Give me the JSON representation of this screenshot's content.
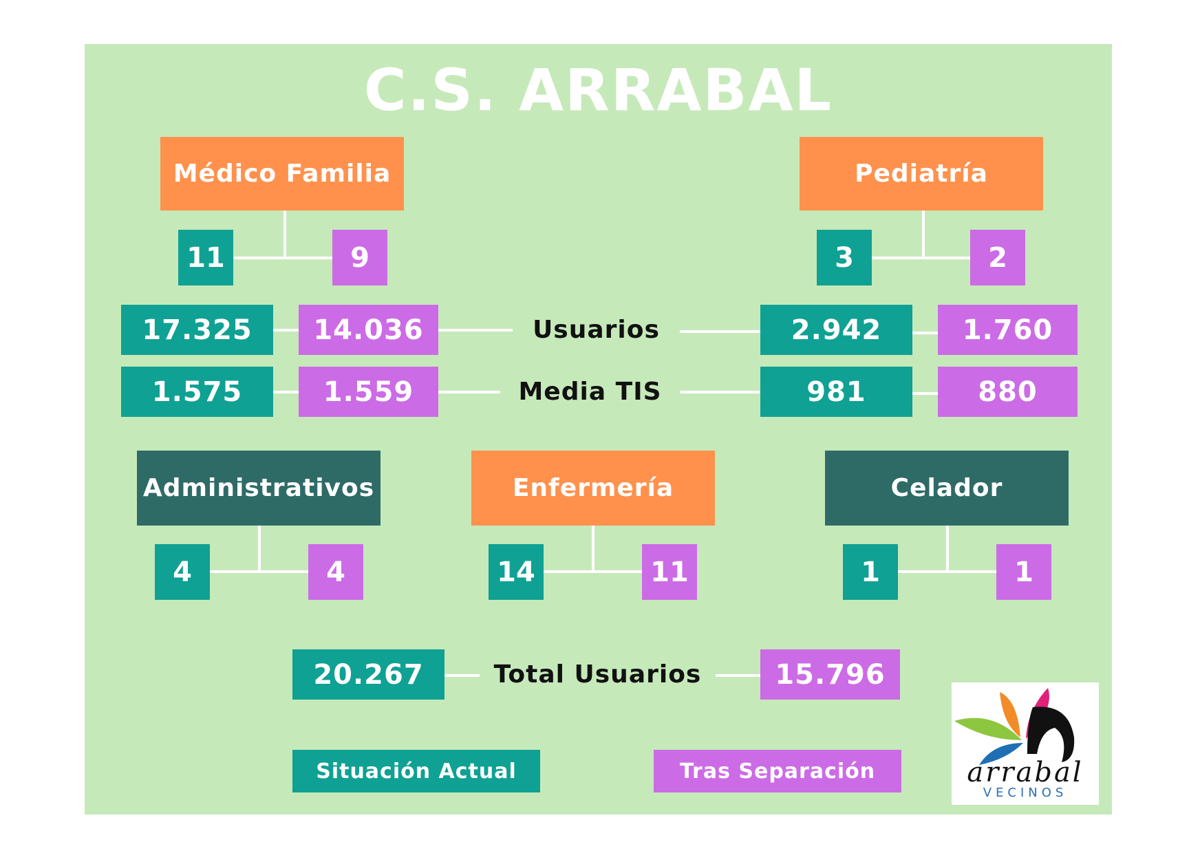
{
  "title": "C.S. ARRABAL",
  "medico_familia": {
    "label": "Médico Familia",
    "actual": "11",
    "tras": "9"
  },
  "pediatria": {
    "label": "Pediatría",
    "actual": "3",
    "tras": "2"
  },
  "usuarios": {
    "label": "Usuarios",
    "medico_actual": "17.325",
    "medico_tras": "14.036",
    "pediatria_actual": "2.942",
    "pediatria_tras": "1.760"
  },
  "media_tis": {
    "label": "Media TIS",
    "medico_actual": "1.575",
    "medico_tras": "1.559",
    "pediatria_actual": "981",
    "pediatria_tras": "880"
  },
  "administrativos": {
    "label": "Administrativos",
    "actual": "4",
    "tras": "4"
  },
  "enfermeria": {
    "label": "Enfermería",
    "actual": "14",
    "tras": "11"
  },
  "celador": {
    "label": "Celador",
    "actual": "1",
    "tras": "1"
  },
  "total_usuarios": {
    "label": "Total Usuarios",
    "actual": "20.267",
    "tras": "15.796"
  },
  "legend": {
    "actual": "Situación Actual",
    "tras": "Tras Separación"
  },
  "logo": {
    "text": "arrabal",
    "sub": "VECINOS"
  },
  "colors": {
    "background": "#c6e9ba",
    "header": "#ff914d",
    "actual": "#0fa193",
    "tras": "#cc6be6",
    "dark_header": "#2e6b67"
  }
}
